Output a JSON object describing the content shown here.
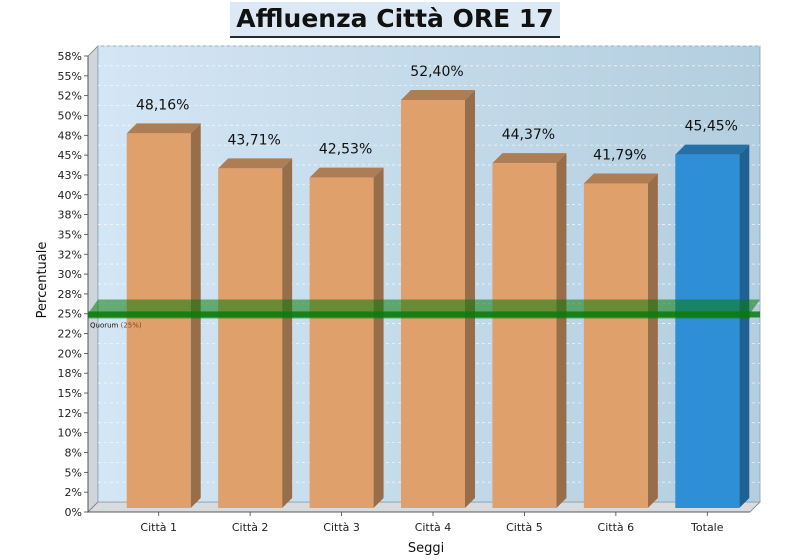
{
  "chart_data": {
    "type": "bar",
    "title": "Affluenza Città ORE 17",
    "xlabel": "Seggi",
    "ylabel": "Percentuale",
    "ylim": [
      0,
      58
    ],
    "y_ticks": [
      "0%",
      "2%",
      "5%",
      "8%",
      "10%",
      "12%",
      "15%",
      "18%",
      "20%",
      "22%",
      "25%",
      "28%",
      "30%",
      "32%",
      "35%",
      "38%",
      "40%",
      "43%",
      "45%",
      "48%",
      "50%",
      "52%",
      "55%",
      "58%"
    ],
    "categories": [
      "Città 1",
      "Città 2",
      "Città 3",
      "Città 4",
      "Città 5",
      "Città 6",
      "Totale"
    ],
    "values": [
      48.16,
      43.71,
      42.53,
      52.4,
      44.37,
      41.79,
      45.45
    ],
    "data_labels": [
      "48,16%",
      "43,71%",
      "42,53%",
      "52,40%",
      "44,37%",
      "41,79%",
      "45,45%"
    ],
    "bar_colors": [
      "#dfa06c",
      "#dfa06c",
      "#dfa06c",
      "#dfa06c",
      "#dfa06c",
      "#dfa06c",
      "#2e8fd6"
    ],
    "grid": true,
    "reference_line": {
      "value": 25,
      "label": "Quorum",
      "sublabel": "(25%)",
      "color": "#0a7a0a"
    },
    "background_color": "#c6dff0"
  }
}
